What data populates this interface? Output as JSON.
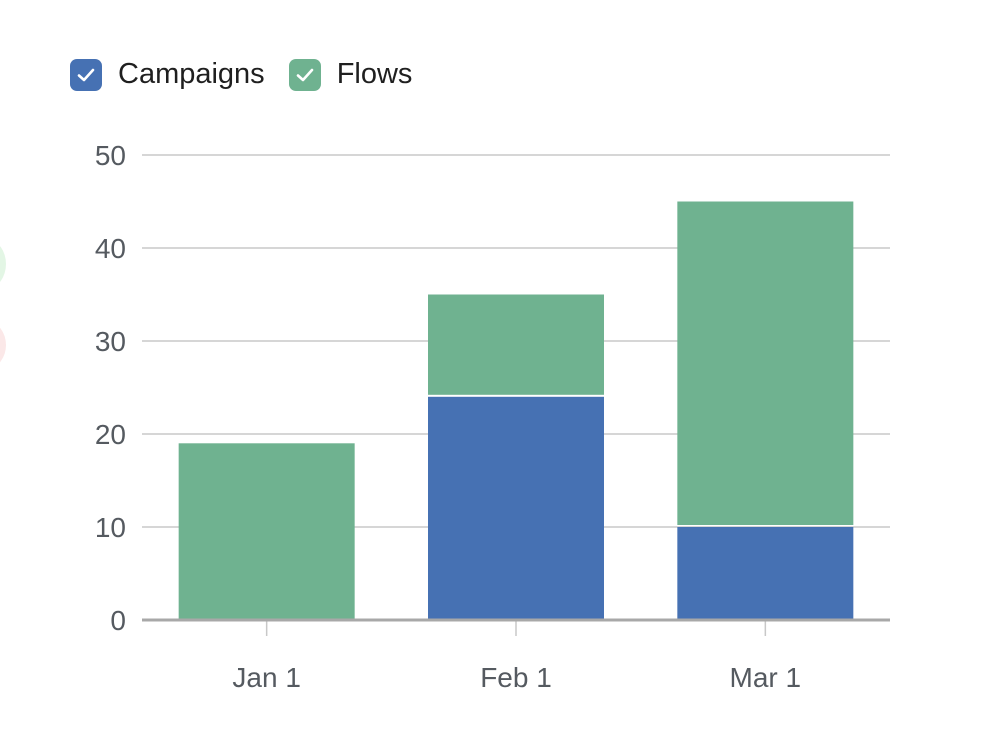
{
  "legend": {
    "items": [
      {
        "label": "Campaigns",
        "color": "#4671b3",
        "checked": true
      },
      {
        "label": "Flows",
        "color": "#6fb290",
        "checked": true
      }
    ]
  },
  "chart_data": {
    "type": "bar",
    "stacked": true,
    "categories": [
      "Jan 1",
      "Feb 1",
      "Mar 1"
    ],
    "series": [
      {
        "name": "Campaigns",
        "color": "#4671b3",
        "values": [
          0,
          24,
          10
        ]
      },
      {
        "name": "Flows",
        "color": "#6fb290",
        "values": [
          19,
          11,
          35
        ]
      }
    ],
    "ylim": [
      0,
      50
    ],
    "yticks": [
      0,
      10,
      20,
      30,
      40,
      50
    ],
    "grid": true,
    "legend_position": "top-left"
  }
}
